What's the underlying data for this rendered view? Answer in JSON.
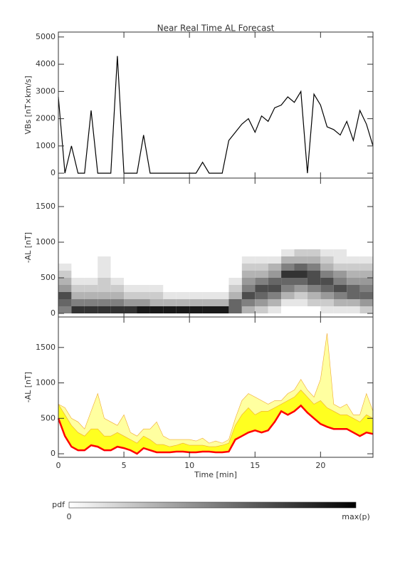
{
  "chart_data": [
    {
      "type": "line",
      "title": "Near Real Time AL Forecast",
      "ylabel": "VBs [nT×km/s]",
      "color": "#000000",
      "x": [
        0,
        0.5,
        1,
        1.5,
        2,
        2.5,
        3,
        3.5,
        4,
        4.5,
        5,
        5.5,
        6,
        6.5,
        7,
        7.5,
        8,
        8.5,
        9,
        9.5,
        10,
        10.5,
        11,
        11.5,
        12,
        12.5,
        13,
        13.5,
        14,
        14.5,
        15,
        15.5,
        16,
        16.5,
        17,
        17.5,
        18,
        18.5,
        19,
        19.5,
        20,
        20.5,
        21,
        21.5,
        22,
        22.5,
        23,
        23.5,
        24
      ],
      "values": [
        2800,
        0,
        1000,
        0,
        0,
        2300,
        0,
        0,
        0,
        4300,
        0,
        0,
        0,
        1400,
        0,
        0,
        0,
        0,
        0,
        0,
        0,
        0,
        400,
        0,
        0,
        0,
        1200,
        1500,
        1800,
        2000,
        1500,
        2100,
        1900,
        2400,
        2500,
        2800,
        2600,
        3000,
        0,
        2900,
        2500,
        1700,
        1600,
        1400,
        1900,
        1200,
        2300,
        1800,
        1000
      ],
      "xlim": [
        0,
        24
      ],
      "ylim": [
        -180,
        5180
      ],
      "yticks": [
        0,
        1000,
        2000,
        3000,
        4000,
        5000
      ]
    },
    {
      "type": "heatmap",
      "ylabel": "-AL [nT]",
      "cmap": "gray_r",
      "x_bins": [
        0,
        1,
        2,
        3,
        4,
        5,
        6,
        7,
        8,
        9,
        10,
        11,
        12,
        13,
        14,
        15,
        16,
        17,
        18,
        19,
        20,
        21,
        22,
        23,
        24
      ],
      "y_bins": [
        0,
        100,
        200,
        300,
        400,
        500,
        600,
        700,
        800,
        900
      ],
      "z": [
        [
          0.5,
          0.6,
          0.7,
          0.4,
          0.3,
          0.2,
          0.1,
          0,
          0
        ],
        [
          0.8,
          0.5,
          0.3,
          0.2,
          0.1,
          0,
          0,
          0,
          0
        ],
        [
          0.8,
          0.5,
          0.3,
          0.2,
          0.1,
          0,
          0,
          0,
          0
        ],
        [
          0.8,
          0.5,
          0.3,
          0.2,
          0.2,
          0.1,
          0.1,
          0.1,
          0
        ],
        [
          0.8,
          0.5,
          0.3,
          0.2,
          0.1,
          0,
          0,
          0,
          0
        ],
        [
          0.8,
          0.4,
          0.2,
          0.1,
          0,
          0,
          0,
          0,
          0
        ],
        [
          0.9,
          0.4,
          0.2,
          0.1,
          0,
          0,
          0,
          0,
          0
        ],
        [
          0.9,
          0.3,
          0.2,
          0.1,
          0,
          0,
          0,
          0,
          0
        ],
        [
          0.9,
          0.3,
          0.1,
          0,
          0,
          0,
          0,
          0,
          0
        ],
        [
          0.9,
          0.3,
          0.1,
          0,
          0,
          0,
          0,
          0,
          0
        ],
        [
          0.9,
          0.3,
          0.1,
          0,
          0,
          0,
          0,
          0,
          0
        ],
        [
          0.9,
          0.3,
          0.1,
          0,
          0,
          0,
          0,
          0,
          0
        ],
        [
          0.9,
          0.3,
          0.1,
          0,
          0,
          0,
          0,
          0,
          0
        ],
        [
          0.6,
          0.6,
          0.3,
          0.2,
          0.1,
          0,
          0,
          0,
          0
        ],
        [
          0.3,
          0.5,
          0.7,
          0.5,
          0.4,
          0.3,
          0.2,
          0.1,
          0
        ],
        [
          0.2,
          0.4,
          0.6,
          0.7,
          0.5,
          0.3,
          0.2,
          0.1,
          0
        ],
        [
          0.1,
          0.3,
          0.5,
          0.7,
          0.6,
          0.4,
          0.3,
          0.1,
          0
        ],
        [
          0,
          0.1,
          0.3,
          0.5,
          0.6,
          0.8,
          0.5,
          0.3,
          0.1
        ],
        [
          0,
          0.1,
          0.2,
          0.4,
          0.6,
          0.8,
          0.6,
          0.3,
          0.2
        ],
        [
          0,
          0.2,
          0.3,
          0.5,
          0.7,
          0.7,
          0.5,
          0.3,
          0.2
        ],
        [
          0.1,
          0.2,
          0.4,
          0.6,
          0.7,
          0.5,
          0.3,
          0.2,
          0.1
        ],
        [
          0.1,
          0.3,
          0.5,
          0.7,
          0.5,
          0.4,
          0.2,
          0.1,
          0.1
        ],
        [
          0.1,
          0.3,
          0.6,
          0.6,
          0.4,
          0.3,
          0.2,
          0.1,
          0
        ],
        [
          0.2,
          0.4,
          0.6,
          0.5,
          0.4,
          0.3,
          0.2,
          0.1,
          0
        ]
      ],
      "xlim": [
        0,
        24
      ],
      "ylim": [
        -50,
        1900
      ],
      "yticks": [
        0,
        500,
        1000,
        1500
      ]
    },
    {
      "type": "band",
      "ylabel": "-AL [nT]",
      "xlabel": "Time [min]",
      "x": [
        0,
        0.5,
        1,
        1.5,
        2,
        2.5,
        3,
        3.5,
        4,
        4.5,
        5,
        5.5,
        6,
        6.5,
        7,
        7.5,
        8,
        8.5,
        9,
        9.5,
        10,
        10.5,
        11,
        11.5,
        12,
        12.5,
        13,
        13.5,
        14,
        14.5,
        15,
        15.5,
        16,
        16.5,
        17,
        17.5,
        18,
        18.5,
        19,
        19.5,
        20,
        20.5,
        21,
        21.5,
        22,
        22.5,
        23,
        23.5,
        24
      ],
      "series": [
        {
          "color": "#ffffa0",
          "style": "fill",
          "values": [
            700,
            650,
            500,
            450,
            350,
            600,
            850,
            500,
            450,
            400,
            550,
            300,
            250,
            350,
            350,
            450,
            250,
            200,
            200,
            200,
            200,
            180,
            220,
            150,
            180,
            150,
            200,
            500,
            750,
            850,
            800,
            750,
            700,
            750,
            750,
            850,
            900,
            1050,
            900,
            800,
            1050,
            1700,
            700,
            650,
            700,
            550,
            550,
            850,
            600
          ]
        },
        {
          "color": "#ffff20",
          "style": "fill",
          "values": [
            700,
            550,
            400,
            300,
            250,
            350,
            350,
            250,
            250,
            300,
            250,
            200,
            150,
            250,
            200,
            130,
            130,
            100,
            120,
            150,
            120,
            120,
            120,
            100,
            100,
            120,
            150,
            400,
            550,
            650,
            550,
            600,
            600,
            650,
            700,
            750,
            800,
            900,
            800,
            700,
            750,
            650,
            600,
            550,
            550,
            500,
            450,
            550,
            500
          ]
        },
        {
          "color": "#ff0000",
          "style": "line",
          "values": [
            500,
            250,
            100,
            50,
            50,
            120,
            100,
            50,
            50,
            100,
            80,
            50,
            0,
            80,
            50,
            20,
            20,
            20,
            30,
            30,
            20,
            20,
            30,
            30,
            20,
            20,
            30,
            200,
            250,
            300,
            330,
            300,
            330,
            450,
            600,
            550,
            600,
            680,
            580,
            500,
            420,
            380,
            350,
            350,
            350,
            300,
            250,
            300,
            280
          ]
        }
      ],
      "xlim": [
        0,
        24
      ],
      "ylim": [
        -50,
        1930
      ],
      "yticks": [
        0,
        500,
        1000,
        1500
      ],
      "xticks": [
        0,
        5,
        10,
        15,
        20
      ]
    }
  ],
  "colorbar": {
    "label": "pdf",
    "min_label": "0",
    "max_label": "max(p)"
  }
}
